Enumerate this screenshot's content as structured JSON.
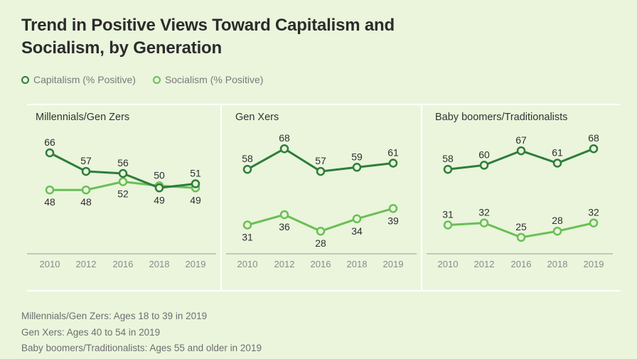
{
  "chart_data": [
    {
      "type": "line",
      "title": "Millennials/Gen Zers",
      "categories": [
        "2010",
        "2012",
        "2016",
        "2018",
        "2019"
      ],
      "series": [
        {
          "name": "Capitalism (% Positive)",
          "values": [
            66,
            57,
            56,
            49,
            51
          ],
          "label_pos": [
            "above",
            "above",
            "above",
            "below",
            "above"
          ]
        },
        {
          "name": "Socialism (% Positive)",
          "values": [
            48,
            48,
            52,
            50,
            49
          ],
          "label_pos": [
            "below",
            "below",
            "below",
            "above",
            "below"
          ]
        }
      ],
      "ylim": [
        0,
        100
      ]
    },
    {
      "type": "line",
      "title": "Gen Xers",
      "categories": [
        "2010",
        "2012",
        "2016",
        "2018",
        "2019"
      ],
      "series": [
        {
          "name": "Capitalism (% Positive)",
          "values": [
            58,
            68,
            57,
            59,
            61
          ],
          "label_pos": [
            "above",
            "above",
            "above",
            "above",
            "above"
          ]
        },
        {
          "name": "Socialism (% Positive)",
          "values": [
            31,
            36,
            28,
            34,
            39
          ],
          "label_pos": [
            "below",
            "below",
            "below",
            "below",
            "below"
          ]
        }
      ],
      "ylim": [
        0,
        100
      ]
    },
    {
      "type": "line",
      "title": "Baby boomers/Traditionalists",
      "categories": [
        "2010",
        "2012",
        "2016",
        "2018",
        "2019"
      ],
      "series": [
        {
          "name": "Capitalism (% Positive)",
          "values": [
            58,
            60,
            67,
            61,
            68
          ],
          "label_pos": [
            "above",
            "above",
            "above",
            "above",
            "above"
          ]
        },
        {
          "name": "Socialism (% Positive)",
          "values": [
            31,
            32,
            25,
            28,
            32
          ],
          "label_pos": [
            "above",
            "above",
            "above",
            "above",
            "above"
          ]
        }
      ],
      "ylim": [
        0,
        100
      ]
    }
  ],
  "title": "Trend in Positive Views Toward Capitalism and Socialism, by Generation",
  "title_lines": [
    "Trend in Positive Views Toward Capitalism and",
    "Socialism, by Generation"
  ],
  "legend": [
    {
      "label": "Capitalism (% Positive)",
      "color": "#2e7d3a"
    },
    {
      "label": "Socialism (% Positive)",
      "color": "#6abf55"
    }
  ],
  "colors": {
    "capitalism": "#2e7d3a",
    "socialism": "#6abf55",
    "background": "#eaf5dc"
  },
  "footnotes": [
    "Millennials/Gen Zers: Ages 18 to 39 in 2019",
    "Gen Xers: Ages 40 to 54 in 2019",
    "Baby boomers/Traditionalists: Ages 55 and older in 2019"
  ]
}
